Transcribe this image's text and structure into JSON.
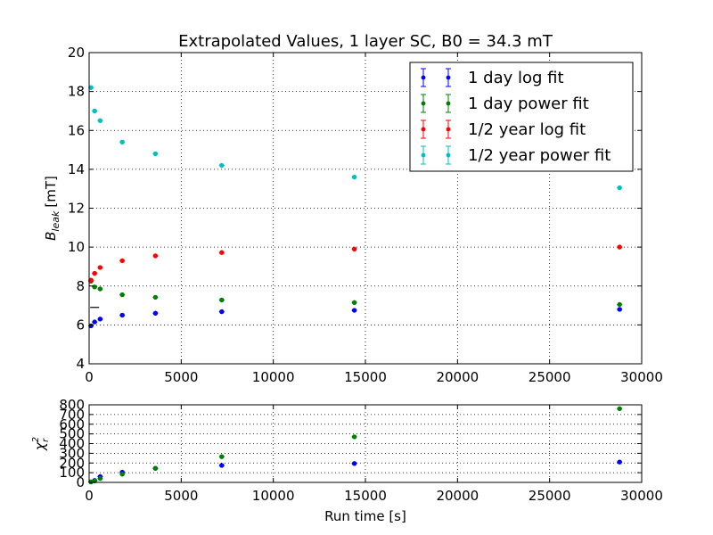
{
  "chart_data": [
    {
      "type": "scatter",
      "title": "Extrapolated Values, 1 layer SC, B0 = 34.3 mT",
      "xlabel": "",
      "ylabel": "B_leak [mT]",
      "ylabel_main": "B",
      "ylabel_sub": "leak",
      "ylabel_unit": "[mT]",
      "xlim": [
        0,
        30000
      ],
      "ylim": [
        4,
        20
      ],
      "xticks": [
        "0",
        "5000",
        "10000",
        "15000",
        "20000",
        "25000",
        "30000"
      ],
      "yticks": [
        "4",
        "6",
        "8",
        "10",
        "12",
        "14",
        "16",
        "18",
        "20"
      ],
      "grid": true,
      "legend_position": "top-right",
      "reference_marks": [
        {
          "x": 300,
          "y": 6.9
        }
      ],
      "series": [
        {
          "name": "1 day log fit",
          "color": "#0000ff",
          "x": [
            100,
            300,
            600,
            1800,
            3600,
            7200,
            14400,
            28800
          ],
          "y": [
            5.95,
            6.15,
            6.3,
            6.5,
            6.6,
            6.68,
            6.75,
            6.8
          ]
        },
        {
          "name": "1 day power fit",
          "color": "#008000",
          "x": [
            100,
            300,
            600,
            1800,
            3600,
            7200,
            14400,
            28800
          ],
          "y": [
            8.25,
            7.95,
            7.85,
            7.55,
            7.42,
            7.28,
            7.15,
            7.05
          ]
        },
        {
          "name": "1/2 year log fit",
          "color": "#ff0000",
          "x": [
            100,
            300,
            600,
            1800,
            3600,
            7200,
            14400,
            28800
          ],
          "y": [
            8.3,
            8.65,
            8.95,
            9.3,
            9.55,
            9.72,
            9.9,
            10.0
          ]
        },
        {
          "name": "1/2 year power fit",
          "color": "#00bfbf",
          "x": [
            100,
            300,
            600,
            1800,
            3600,
            7200,
            14400,
            28800
          ],
          "y": [
            18.2,
            17.0,
            16.5,
            15.4,
            14.8,
            14.2,
            13.6,
            13.05
          ]
        }
      ]
    },
    {
      "type": "scatter",
      "title": "",
      "xlabel": "Run time [s]",
      "ylabel": "χ_r^2",
      "ylabel_main": "χ",
      "ylabel_sub": "r",
      "ylabel_sup": "2",
      "xlim": [
        0,
        30000
      ],
      "ylim": [
        0,
        800
      ],
      "xticks": [
        "0",
        "5000",
        "10000",
        "15000",
        "20000",
        "25000",
        "30000"
      ],
      "yticks": [
        "0",
        "100",
        "200",
        "300",
        "400",
        "500",
        "600",
        "700",
        "800"
      ],
      "grid": true,
      "series": [
        {
          "name": "1 day log fit",
          "color": "#0000ff",
          "x": [
            100,
            300,
            600,
            1800,
            3600,
            7200,
            14400,
            28800
          ],
          "y": [
            5,
            20,
            60,
            105,
            145,
            175,
            195,
            210
          ]
        },
        {
          "name": "1 day power fit",
          "color": "#008000",
          "x": [
            100,
            300,
            600,
            1800,
            3600,
            7200,
            14400,
            28800
          ],
          "y": [
            5,
            15,
            40,
            85,
            145,
            265,
            470,
            760
          ]
        }
      ]
    }
  ]
}
